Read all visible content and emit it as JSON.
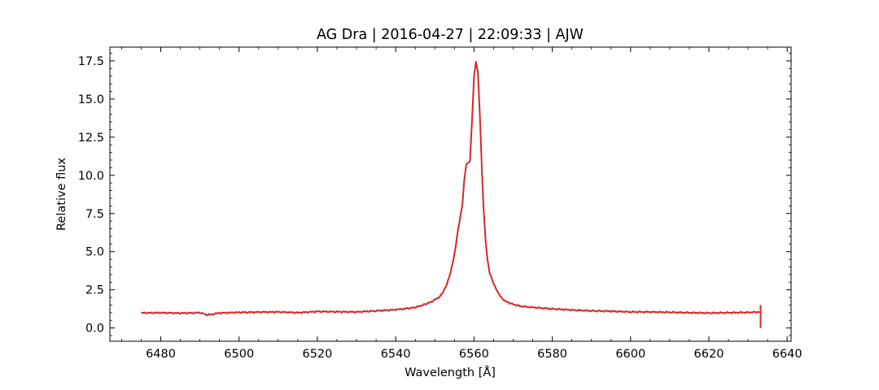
{
  "chart_data": {
    "type": "line",
    "title": "AG Dra | 2016-04-27 | 22:09:33 | AJW",
    "xlabel": "Wavelength [Å]",
    "ylabel": "Relative flux",
    "xlim": [
      6467,
      6641
    ],
    "ylim": [
      -0.87,
      18.4
    ],
    "xticks": [
      6480,
      6500,
      6520,
      6540,
      6560,
      6580,
      6600,
      6620,
      6640
    ],
    "yticks": [
      0.0,
      2.5,
      5.0,
      7.5,
      10.0,
      12.5,
      15.0,
      17.5
    ],
    "xtick_labels": [
      "6480",
      "6500",
      "6520",
      "6540",
      "6560",
      "6580",
      "6600",
      "6620",
      "6640"
    ],
    "ytick_labels": [
      "0.0",
      "2.5",
      "5.0",
      "7.5",
      "10.0",
      "12.5",
      "15.0",
      "17.5"
    ],
    "grid": false,
    "series": [
      {
        "color": "#d62728",
        "x": [
          6475,
          6480,
          6485,
          6490,
          6492,
          6495,
          6500,
          6505,
          6510,
          6515,
          6520,
          6525,
          6530,
          6535,
          6540,
          6543,
          6545,
          6547,
          6549,
          6551,
          6552,
          6553,
          6554,
          6555,
          6556,
          6557,
          6557.5,
          6558,
          6558.5,
          6559,
          6559.5,
          6560,
          6560.5,
          6561,
          6561.5,
          6562,
          6562.5,
          6563,
          6563.5,
          6564,
          6565,
          6566,
          6567,
          6568,
          6570,
          6572,
          6575,
          6580,
          6585,
          6590,
          6595,
          6600,
          6605,
          6610,
          6615,
          6620,
          6625,
          6630,
          6633.2
        ],
        "y": [
          0.98,
          1.0,
          0.97,
          1.0,
          0.85,
          0.98,
          1.02,
          1.04,
          1.05,
          1.0,
          1.08,
          1.06,
          1.05,
          1.12,
          1.2,
          1.28,
          1.35,
          1.5,
          1.7,
          2.0,
          2.3,
          2.8,
          3.6,
          4.8,
          6.6,
          8.0,
          9.6,
          10.7,
          10.8,
          11.0,
          13.6,
          16.4,
          17.5,
          16.7,
          14.0,
          10.5,
          7.6,
          5.6,
          4.4,
          3.6,
          2.9,
          2.4,
          2.0,
          1.75,
          1.55,
          1.42,
          1.35,
          1.25,
          1.18,
          1.12,
          1.1,
          1.05,
          1.05,
          1.03,
          1.0,
          0.98,
          1.0,
          1.02,
          1.05
        ]
      }
    ],
    "end_marker": {
      "x": 6633.2,
      "y_low": 0.0,
      "y_high": 1.5
    }
  }
}
